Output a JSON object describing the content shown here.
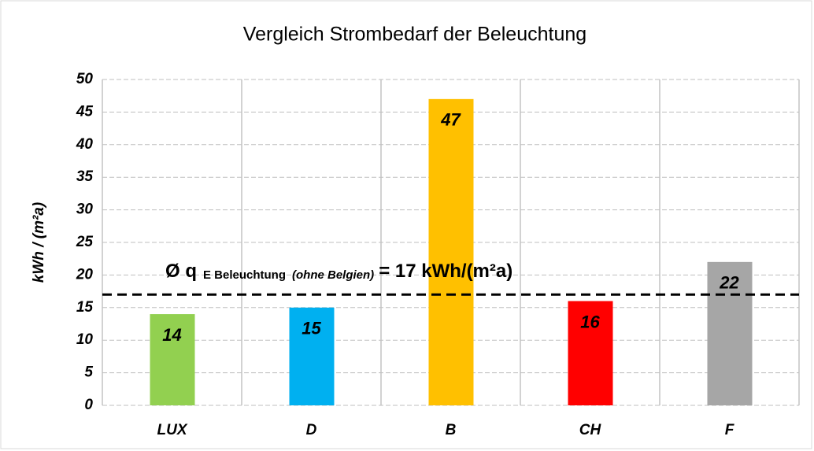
{
  "chart_data": {
    "type": "bar",
    "title": "Vergleich Strombedarf der Beleuchtung",
    "y_axis_label": "kWh / (m²a)",
    "categories": [
      "LUX",
      "D",
      "B",
      "CH",
      "F"
    ],
    "values": [
      14,
      15,
      47,
      16,
      22
    ],
    "colors": [
      "#92d050",
      "#00b0f0",
      "#ffc000",
      "#ff0000",
      "#a6a6a6"
    ],
    "ylim": [
      0,
      50
    ],
    "yticks": [
      0,
      5,
      10,
      15,
      20,
      25,
      30,
      35,
      40,
      45,
      50
    ],
    "grid": true,
    "reference_line": {
      "value": 17,
      "color": "#000000"
    },
    "annotation": {
      "symbol": "Ø q",
      "subscript": "E Beleuchtung",
      "note": "(ohne Belgien)",
      "text": "= 17 kWh/(m²a)"
    }
  }
}
